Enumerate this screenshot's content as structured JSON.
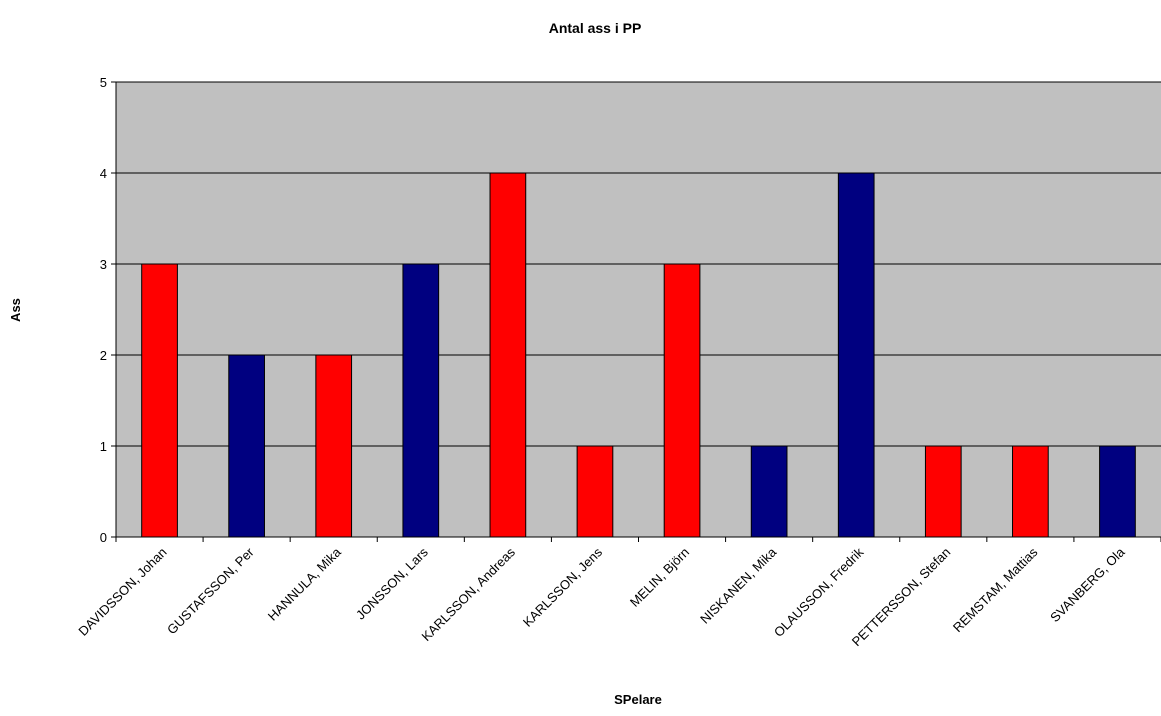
{
  "chart_data": {
    "type": "bar",
    "title": "Antal ass i PP",
    "xlabel": "SPelare",
    "ylabel": "Ass",
    "ylim": [
      0,
      5
    ],
    "yticks": [
      0,
      1,
      2,
      3,
      4,
      5
    ],
    "grid": true,
    "legend": "none",
    "categories": [
      "DAVIDSSON, Johan",
      "GUSTAFSSON, Per",
      "HANNULA, Mika",
      "JONSSON, Lars",
      "KARLSSON, Andreas",
      "KARLSSON, Jens",
      "MELIN, Björn",
      "NISKANEN, Mika",
      "OLAUSSON, Fredrik",
      "PETTERSSON, Stefan",
      "REMSTAM, Mattias",
      "SVANBERG, Ola"
    ],
    "values": [
      3,
      2,
      2,
      3,
      4,
      1,
      3,
      1,
      4,
      1,
      1,
      1
    ],
    "bar_colors": [
      "#ff0000",
      "#000080",
      "#ff0000",
      "#000080",
      "#ff0000",
      "#ff0000",
      "#ff0000",
      "#000080",
      "#000080",
      "#ff0000",
      "#ff0000",
      "#000080"
    ],
    "plot_background": "#c0c0c0"
  }
}
